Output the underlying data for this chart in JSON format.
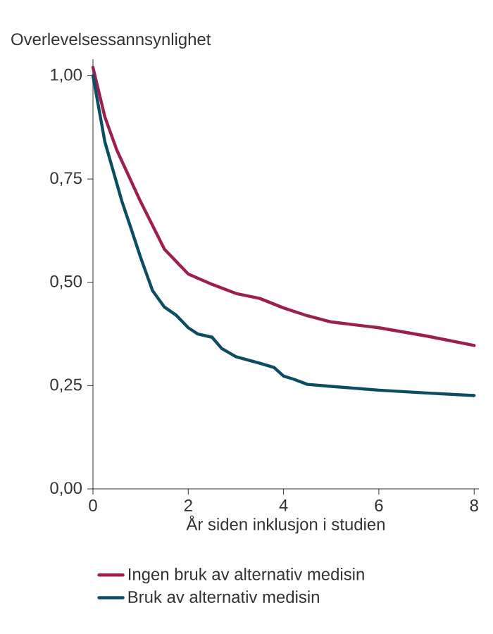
{
  "chart_data": {
    "type": "line",
    "ylabel": "Overlevelsessannsynlighet",
    "xlabel": "År siden inklusjon i studien",
    "xlim": [
      0,
      8.1
    ],
    "ylim": [
      0,
      1.04
    ],
    "xticks": [
      0,
      2,
      4,
      6,
      8
    ],
    "yticks": [
      {
        "value": 0,
        "label": "0,00"
      },
      {
        "value": 0.25,
        "label": "0,25"
      },
      {
        "value": 0.5,
        "label": "0,50"
      },
      {
        "value": 0.75,
        "label": "0,75"
      },
      {
        "value": 1,
        "label": "1,00"
      }
    ],
    "legend": "bottom",
    "grid": false,
    "marker": "none",
    "line_style": "solid",
    "series": [
      {
        "name": "Ingen bruk av alternativ medisin",
        "color": "#9b1f4f",
        "x": [
          0,
          0.25,
          0.5,
          1,
          1.5,
          2,
          2.5,
          3,
          3.5,
          4,
          4.5,
          5,
          6,
          7,
          8
        ],
        "values": [
          1.02,
          0.9,
          0.82,
          0.695,
          0.58,
          0.52,
          0.495,
          0.473,
          0.461,
          0.438,
          0.419,
          0.404,
          0.39,
          0.37,
          0.347
        ]
      },
      {
        "name": "Bruk av alternativ medisin",
        "color": "#0d4d63",
        "x": [
          0,
          0.25,
          0.61,
          0.8,
          1,
          1.25,
          1.5,
          1.75,
          2,
          2.2,
          2.5,
          2.7,
          3,
          3.5,
          3.8,
          4,
          4.2,
          4.5,
          5,
          6,
          7,
          8
        ],
        "values": [
          1.0,
          0.84,
          0.695,
          0.63,
          0.56,
          0.48,
          0.44,
          0.42,
          0.39,
          0.375,
          0.367,
          0.34,
          0.32,
          0.304,
          0.294,
          0.273,
          0.266,
          0.253,
          0.248,
          0.239,
          0.232,
          0.226
        ]
      }
    ]
  }
}
